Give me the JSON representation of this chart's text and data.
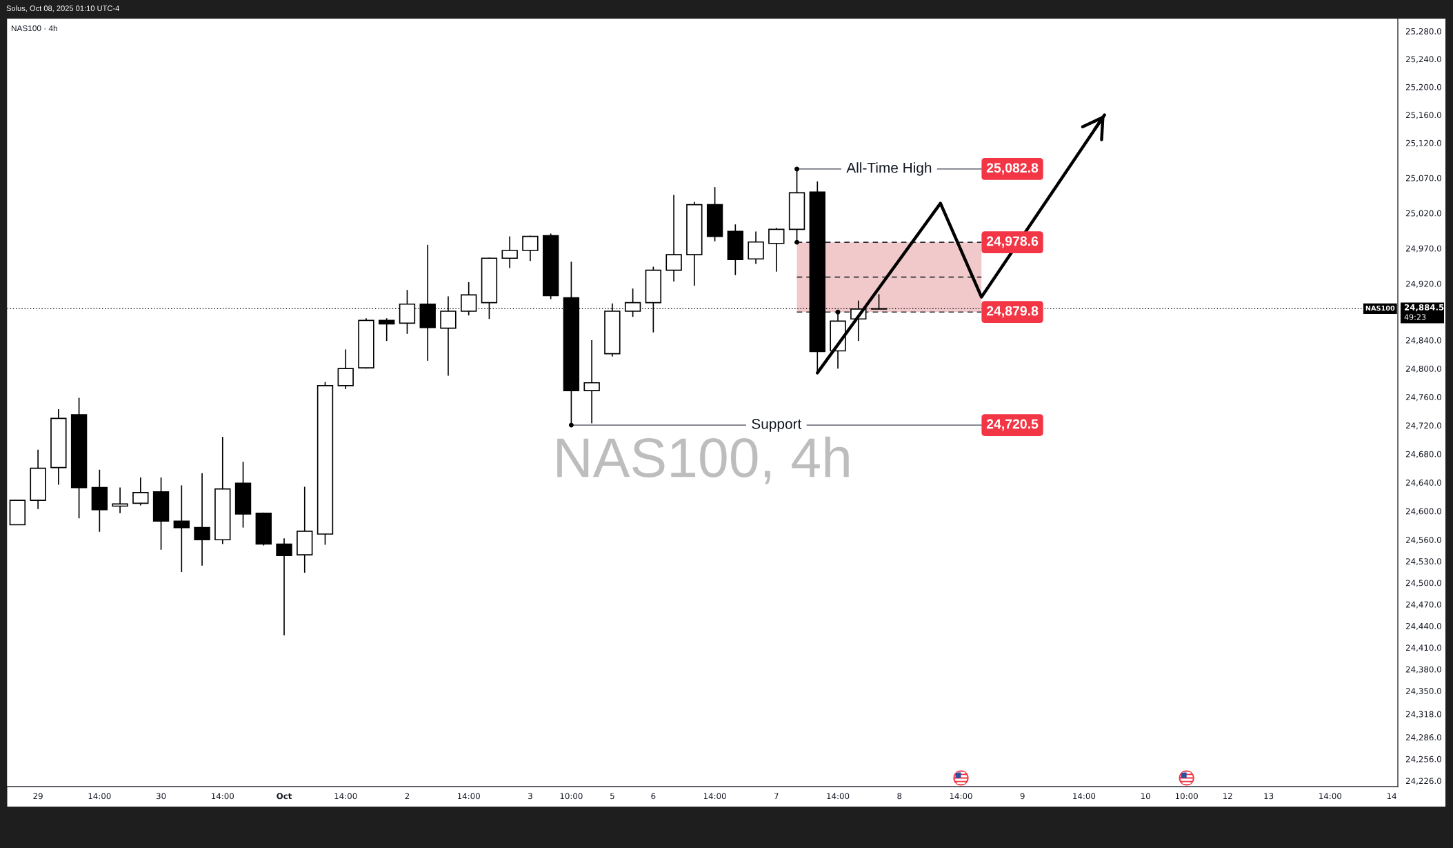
{
  "chart_data": {
    "type": "candlestick",
    "title": "NAS100 · 4h",
    "annotations": [
      "Solus, Oct 08, 2025 01:10 UTC-4",
      "NAS100, 4h",
      "25,082.8",
      "24,720.5",
      "24,978.6",
      "24,879.8",
      "24,884.5",
      "49:23"
    ],
    "categories": [
      null,
      "29",
      null,
      null,
      "14:00",
      null,
      null,
      "30",
      null,
      null,
      "14:00",
      null,
      null,
      "Oct",
      null,
      null,
      "14:00",
      null,
      null,
      "2",
      null,
      null,
      "14:00",
      null,
      null,
      "3",
      null,
      "10:00",
      null,
      "5",
      null,
      "6",
      null,
      null,
      "14:00",
      null,
      null,
      "7",
      null,
      null,
      "14:00",
      null,
      null,
      "8",
      null,
      null,
      "14:00",
      null,
      null,
      "9",
      null,
      null,
      "14:00",
      null,
      null,
      "10",
      null,
      "10:00",
      null,
      "12",
      null,
      "13",
      null,
      null,
      "14:00",
      null,
      null,
      "14"
    ],
    "ohlc": [
      [
        24581,
        24615,
        24581,
        24615
      ],
      [
        24615,
        24686,
        24603,
        24660
      ],
      [
        24661,
        24743,
        24637,
        24730
      ],
      [
        24735,
        24759,
        24590,
        24633
      ],
      [
        24633,
        24658,
        24571,
        24602
      ],
      [
        24607,
        24633,
        24597,
        24610
      ],
      [
        24611,
        24647,
        24608,
        24626
      ],
      [
        24627,
        24647,
        24546,
        24586
      ],
      [
        24586,
        24636,
        24515,
        24577
      ],
      [
        24577,
        24653,
        24524,
        24560
      ],
      [
        24560,
        24704,
        24554,
        24631
      ],
      [
        24639,
        24669,
        24577,
        24596
      ],
      [
        24597,
        24598,
        24552,
        24554
      ],
      [
        24554,
        24562,
        24427,
        24538
      ],
      [
        24539,
        24634,
        24514,
        24572
      ],
      [
        24568,
        24781,
        24553,
        24776
      ],
      [
        24776,
        24827,
        24771,
        24800
      ],
      [
        24801,
        24871,
        24800,
        24868
      ],
      [
        24868,
        24871,
        24839,
        24863
      ],
      [
        24864,
        24911,
        24849,
        24891
      ],
      [
        24891,
        24975,
        24811,
        24858
      ],
      [
        24857,
        24902,
        24790,
        24881
      ],
      [
        24881,
        24922,
        24875,
        24904
      ],
      [
        24893,
        24957,
        24870,
        24956
      ],
      [
        24956,
        24987,
        24942,
        24967
      ],
      [
        24967,
        24988,
        24952,
        24987
      ],
      [
        24988,
        24991,
        24898,
        24903
      ],
      [
        24900,
        24951,
        24720.5,
        24769
      ],
      [
        24769,
        24840,
        24723,
        24780
      ],
      [
        24821,
        24892,
        24817,
        24881
      ],
      [
        24881,
        24913,
        24873,
        24893
      ],
      [
        24893,
        24944,
        24851,
        24939
      ],
      [
        24939,
        25046,
        24923,
        24961
      ],
      [
        24961,
        25036,
        24917,
        25032
      ],
      [
        25032,
        25057,
        24980,
        24987
      ],
      [
        24994,
        25004,
        24932,
        24954
      ],
      [
        24955,
        24994,
        24948,
        24979
      ],
      [
        24977,
        24999,
        24937,
        24997
      ],
      [
        24997,
        25082.8,
        24978.6,
        25049
      ],
      [
        25050,
        25065,
        24794,
        24824
      ],
      [
        24825,
        24879.8,
        24800,
        24867
      ],
      [
        24870,
        24896,
        24839,
        24884
      ],
      [
        24884,
        24905,
        24884,
        24884.5
      ],
      null,
      null,
      null,
      null,
      null,
      null,
      null,
      null,
      null,
      null,
      null,
      null,
      null,
      null,
      null,
      null,
      null,
      null,
      null,
      null,
      null,
      null,
      null,
      null,
      null
    ],
    "series": [
      {
        "type": "line",
        "color": "#000000",
        "values": [
          null,
          null,
          null,
          null,
          null,
          null,
          null,
          null,
          null,
          null,
          null,
          null,
          null,
          null,
          null,
          null,
          null,
          null,
          null,
          null,
          null,
          null,
          null,
          null,
          null,
          null,
          null,
          null,
          null,
          null,
          null,
          null,
          null,
          null,
          null,
          null,
          null,
          null,
          null,
          24794,
          null,
          null,
          null,
          null,
          null,
          25034,
          null,
          24901,
          null,
          null,
          null,
          null,
          null,
          25160,
          null,
          null,
          null,
          null,
          null,
          null,
          null,
          null,
          null,
          null,
          null,
          null,
          null,
          null
        ]
      }
    ],
    "ref_lines": [
      {
        "axis": "y",
        "value": 25082.8,
        "label": "All-Time High",
        "color": "#787b86"
      },
      {
        "axis": "y",
        "value": 24720.5,
        "label": "Support",
        "color": "#787b86"
      },
      {
        "axis": "y",
        "value": 24978.6,
        "color": "#2a2e39",
        "line_style": "dashed"
      },
      {
        "axis": "y",
        "value": 24929.2,
        "color": "#2a2e39",
        "line_style": "dashed"
      },
      {
        "axis": "y",
        "value": 24879.8,
        "color": "#2a2e39",
        "line_style": "dashed"
      },
      {
        "axis": "y",
        "value": 24884.5,
        "label": "NAS100",
        "color": "#000000",
        "line_style": "dotted"
      }
    ],
    "bands": [
      {
        "axis": "y",
        "from": 24879.8,
        "to": 24978.6,
        "color": "#f2c9cb"
      }
    ],
    "log": true,
    "ylim": [
      24218,
      25298
    ],
    "yticks": [
      {
        "value": 25280,
        "label": "25,280.0"
      },
      {
        "value": 25240,
        "label": "25,240.0"
      },
      {
        "value": 25200,
        "label": "25,200.0"
      },
      {
        "value": 25160,
        "label": "25,160.0"
      },
      {
        "value": 25120,
        "label": "25,120.0"
      },
      {
        "value": 25070,
        "label": "25,070.0"
      },
      {
        "value": 25020,
        "label": "25,020.0"
      },
      {
        "value": 24970,
        "label": "24,970.0"
      },
      {
        "value": 24920,
        "label": "24,920.0"
      },
      {
        "value": 24840,
        "label": "24,840.0"
      },
      {
        "value": 24800,
        "label": "24,800.0"
      },
      {
        "value": 24760,
        "label": "24,760.0"
      },
      {
        "value": 24720,
        "label": "24,720.0"
      },
      {
        "value": 24680,
        "label": "24,680.0"
      },
      {
        "value": 24640,
        "label": "24,640.0"
      },
      {
        "value": 24600,
        "label": "24,600.0"
      },
      {
        "value": 24560,
        "label": "24,560.0"
      },
      {
        "value": 24530,
        "label": "24,530.0"
      },
      {
        "value": 24500,
        "label": "24,500.0"
      },
      {
        "value": 24470,
        "label": "24,470.0"
      },
      {
        "value": 24440,
        "label": "24,440.0"
      },
      {
        "value": 24410,
        "label": "24,410.0"
      },
      {
        "value": 24380,
        "label": "24,380.0"
      },
      {
        "value": 24350,
        "label": "24,350.0"
      },
      {
        "value": 24318,
        "label": "24,318.0"
      },
      {
        "value": 24286,
        "label": "24,286.0"
      },
      {
        "value": 24256,
        "label": "24,256.0"
      },
      {
        "value": 24226,
        "label": "24,226.0"
      }
    ]
  }
}
